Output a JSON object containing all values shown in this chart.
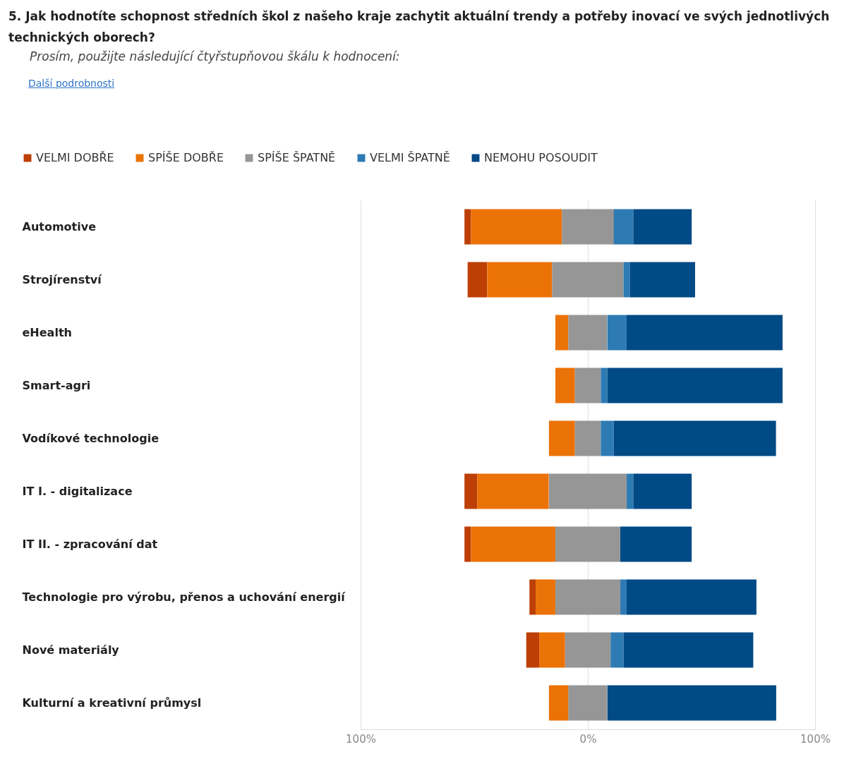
{
  "chart_data": {
    "type": "bar",
    "orientation": "horizontal",
    "title": "5. Jak hodnotíte schopnost středních škol z našeho kraje zachytit aktuální trendy a potřeby inovací ve svých jednotlivých technických oborech?",
    "subtitle": "Prosím, použijte následující čtyřstupňovou škálu k hodnocení:",
    "annotations": [
      "Další podrobnosti"
    ],
    "categories": [
      "Automotive",
      "Strojírenství",
      "eHealth",
      "Smart-agri",
      "Vodíkové technologie",
      "IT I. - digitalizace",
      "IT II. - zpracování dat",
      "Technologie pro výrobu, přenos a uchování energií",
      "Nové materiály",
      "Kulturní a kreativní průmysl"
    ],
    "series": [
      {
        "name": "VELMI DOBŘE",
        "color": "#bd3f05",
        "values": [
          2.9,
          8.6,
          null,
          null,
          null,
          5.7,
          2.9,
          2.9,
          5.7,
          null
        ],
        "base": [
          -54.3,
          -52.9,
          null,
          null,
          null,
          -54.3,
          -54.3,
          -25.7,
          -27.1,
          null
        ]
      },
      {
        "name": "SPÍŠE DOBŘE",
        "color": "#eb7206",
        "values": [
          40,
          28.6,
          5.7,
          8.6,
          11.4,
          31.4,
          37.1,
          8.6,
          11.4,
          8.6
        ],
        "base": [
          -51.4,
          -44.3,
          -14.3,
          -14.3,
          -17.1,
          -48.6,
          -51.4,
          -22.9,
          -21.4,
          -17.1
        ]
      },
      {
        "name": "SPÍŠE ŠPATNĚ",
        "color": "#969696",
        "values": [
          22.9,
          31.4,
          17.1,
          11.4,
          11.4,
          34.3,
          28.6,
          28.6,
          20,
          17.1
        ],
        "base": [
          -11.4,
          -15.7,
          -8.6,
          -5.7,
          -5.7,
          -17.1,
          -14.3,
          -14.3,
          -10,
          -8.6
        ]
      },
      {
        "name": "VELMI ŠPATNĚ",
        "color": "#2e7bb4",
        "values": [
          8.6,
          2.9,
          8.6,
          2.9,
          5.7,
          2.9,
          null,
          2.9,
          5.7,
          null
        ],
        "base": [
          11.4,
          15.7,
          8.6,
          5.7,
          5.7,
          17.1,
          null,
          14.3,
          10,
          null
        ]
      },
      {
        "name": "NEMOHU POSOUDIT",
        "color": "#004a85",
        "values": [
          25.7,
          28.6,
          68.6,
          77.1,
          71.4,
          25.7,
          31.4,
          57.1,
          57.1,
          74.3
        ],
        "base": [
          20,
          18.6,
          17.1,
          8.6,
          11.4,
          20,
          14.3,
          17.1,
          15.7,
          8.6
        ]
      }
    ],
    "xlim": [
      -100,
      100
    ],
    "xticks": [
      {
        "value": -100,
        "label": "100%"
      },
      {
        "value": 0,
        "label": "0%"
      },
      {
        "value": 100,
        "label": "100%"
      }
    ],
    "grid": "x",
    "legend": "top"
  }
}
